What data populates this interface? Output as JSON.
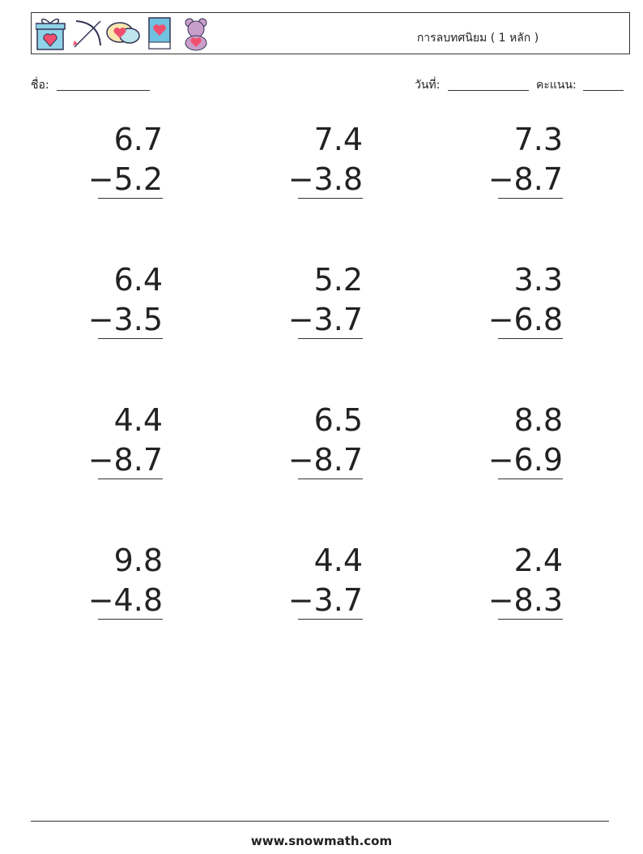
{
  "header": {
    "title": "การลบทศนิยม ( 1 หลัก )"
  },
  "fields": {
    "name": "ชื่อ:",
    "date": "วันที่:",
    "score": "คะแนน:"
  },
  "problems": [
    {
      "top": "6.7",
      "bottom": "−5.2"
    },
    {
      "top": "7.4",
      "bottom": "−3.8"
    },
    {
      "top": "7.3",
      "bottom": "−8.7"
    },
    {
      "top": "6.4",
      "bottom": "−3.5"
    },
    {
      "top": "5.2",
      "bottom": "−3.7"
    },
    {
      "top": "3.3",
      "bottom": "−6.8"
    },
    {
      "top": "4.4",
      "bottom": "−8.7"
    },
    {
      "top": "6.5",
      "bottom": "−8.7"
    },
    {
      "top": "8.8",
      "bottom": "−6.9"
    },
    {
      "top": "9.8",
      "bottom": "−4.8"
    },
    {
      "top": "4.4",
      "bottom": "−3.7"
    },
    {
      "top": "2.4",
      "bottom": "−8.3"
    }
  ],
  "footer": "www.snowmath.com"
}
